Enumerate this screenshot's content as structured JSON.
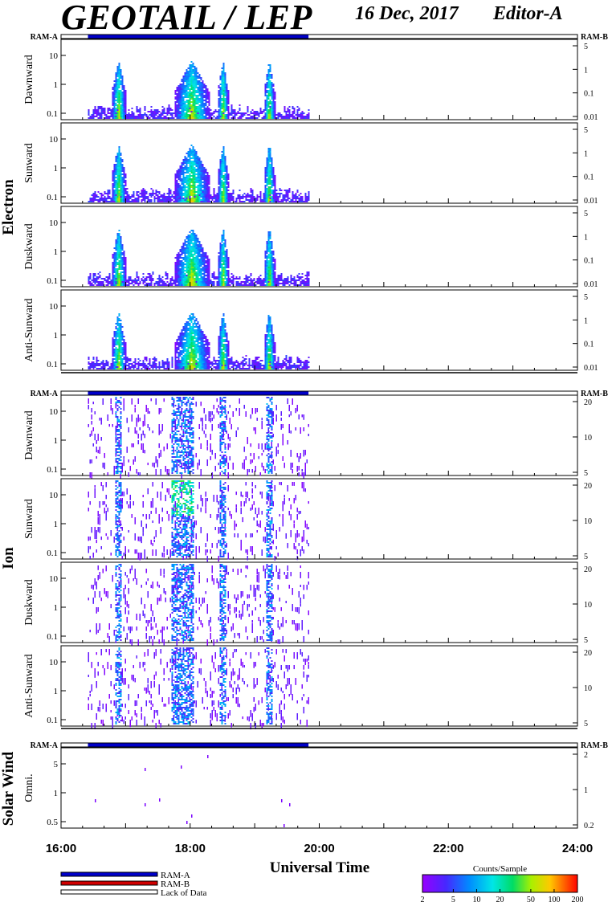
{
  "header": {
    "title": "GEOTAIL / LEP",
    "date": "16 Dec, 2017",
    "editor": "Editor-A"
  },
  "chart_data": {
    "type": "heatmap",
    "xlabel": "Universal Time",
    "x_range": [
      "16:00",
      "24:00"
    ],
    "x_ticks": [
      "16:00",
      "18:00",
      "20:00",
      "22:00",
      "24:00"
    ],
    "data_interval": [
      "16:25",
      "19:50"
    ],
    "ram_labels": {
      "a": "RAM-A",
      "b": "RAM-B"
    },
    "groups": [
      {
        "name": "Electron",
        "panels": [
          {
            "name": "Dawnward",
            "left_ticks": [
              "10",
              "1",
              "0.1"
            ],
            "right_ticks": [
              "5",
              "1",
              "0.1",
              "0.01"
            ]
          },
          {
            "name": "Sunward",
            "left_ticks": [
              "10",
              "1",
              "0.1"
            ],
            "right_ticks": [
              "5",
              "1",
              "0.1",
              "0.01"
            ]
          },
          {
            "name": "Duskward",
            "left_ticks": [
              "10",
              "1",
              "0.1"
            ],
            "right_ticks": [
              "5",
              "1",
              "0.1",
              "0.01"
            ]
          },
          {
            "name": "Anti-Sunward",
            "left_ticks": [
              "10",
              "1",
              "0.1"
            ],
            "right_ticks": [
              "5",
              "1",
              "0.1",
              "0.01"
            ]
          }
        ]
      },
      {
        "name": "Ion",
        "panels": [
          {
            "name": "Dawnward",
            "left_ticks": [
              "10",
              "1",
              "0.1"
            ],
            "right_ticks": [
              "20",
              "10",
              "5"
            ]
          },
          {
            "name": "Sunward",
            "left_ticks": [
              "10",
              "1",
              "0.1"
            ],
            "right_ticks": [
              "20",
              "10",
              "5"
            ]
          },
          {
            "name": "Duskward",
            "left_ticks": [
              "10",
              "1",
              "0.1"
            ],
            "right_ticks": [
              "20",
              "10",
              "5"
            ]
          },
          {
            "name": "Anti-Sunward",
            "left_ticks": [
              "10",
              "1",
              "0.1"
            ],
            "right_ticks": [
              "20",
              "10",
              "5"
            ]
          }
        ]
      },
      {
        "name": "Solar Wind",
        "panels": [
          {
            "name": "Omni.",
            "left_ticks": [
              "5",
              "1",
              "0.5"
            ],
            "right_ticks": [
              "2",
              "1",
              "0.2"
            ]
          }
        ]
      }
    ],
    "electron_bursts_ut": [
      "16:53",
      "17:55",
      "18:30",
      "19:13"
    ],
    "ion_bursts_ut": [
      "16:53",
      "17:52",
      "18:30",
      "19:13"
    ],
    "legend": [
      {
        "label": "RAM-A",
        "color": "#0000c8"
      },
      {
        "label": "RAM-B",
        "color": "#d00000"
      },
      {
        "label": "Lack of Data",
        "color": "#ffffff"
      }
    ],
    "colorbar": {
      "title": "Counts/Sample",
      "ticks": [
        "2",
        "5",
        "10",
        "20",
        "50",
        "100",
        "200"
      ],
      "range": [
        2,
        200
      ],
      "scale": "log"
    }
  }
}
